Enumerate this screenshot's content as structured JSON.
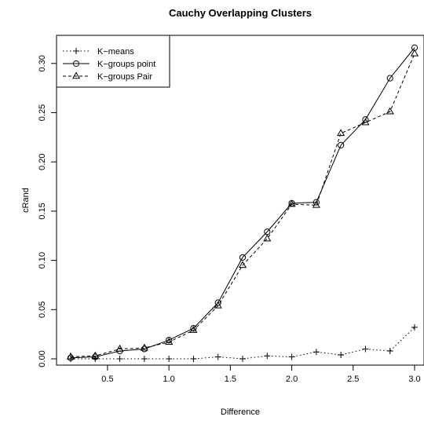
{
  "chart_data": {
    "type": "line",
    "title": "Cauchy Overlapping Clusters",
    "xlabel": "Difference",
    "ylabel": "cRand",
    "x": [
      0.2,
      0.4,
      0.6,
      0.8,
      1.0,
      1.2,
      1.4,
      1.6,
      1.8,
      2.0,
      2.2,
      2.4,
      2.6,
      2.8,
      3.0
    ],
    "xlim": [
      0.2,
      3.0
    ],
    "ylim": [
      0.0,
      0.315
    ],
    "x_ticks": [
      "0.5",
      "1.0",
      "1.5",
      "2.0",
      "2.5",
      "3.0"
    ],
    "y_ticks": [
      "0.00",
      "0.05",
      "0.10",
      "0.15",
      "0.20",
      "0.25",
      "0.30"
    ],
    "grid": false,
    "legend_position": "top-left",
    "series": [
      {
        "name": "K−means",
        "marker": "plus",
        "line_style": "dotted",
        "values": [
          0.0,
          0.0,
          0.0,
          0.0,
          0.0,
          0.0,
          0.002,
          0.0,
          0.003,
          0.002,
          0.007,
          0.004,
          0.01,
          0.008,
          0.032
        ]
      },
      {
        "name": "K−groups point",
        "marker": "circle",
        "line_style": "solid",
        "values": [
          0.001,
          0.002,
          0.008,
          0.01,
          0.019,
          0.031,
          0.057,
          0.103,
          0.129,
          0.158,
          0.159,
          0.217,
          0.243,
          0.285,
          0.316
        ]
      },
      {
        "name": "K−groups Pair",
        "marker": "triangle",
        "line_style": "dashed",
        "values": [
          0.002,
          0.003,
          0.01,
          0.011,
          0.017,
          0.029,
          0.054,
          0.095,
          0.122,
          0.157,
          0.156,
          0.229,
          0.24,
          0.251,
          0.31
        ]
      }
    ]
  }
}
